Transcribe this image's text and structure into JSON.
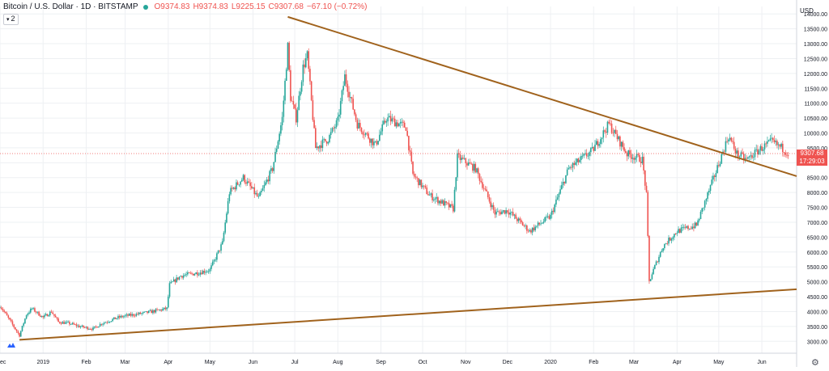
{
  "header": {
    "symbol": "Bitcoin / U.S. Dollar · 1D · BITSTAMP",
    "open": "O9374.83",
    "high": "H9374.83",
    "low": "L9225.15",
    "close": "C9307.68",
    "change": "−67.10 (−0.72%)",
    "indicator_count": "2",
    "currency": "USD",
    "price_label": "9307.68",
    "countdown_label": "17:29:03"
  },
  "colors": {
    "up": "#26a69a",
    "down": "#ef5350",
    "trendline": "#a0621c",
    "price_line": "#ef5350",
    "grid": "#eef0f3"
  },
  "icons": [
    "tradingview-logo-icon",
    "settings-gear-icon"
  ],
  "chart_data": {
    "type": "candlestick",
    "title": "Bitcoin / U.S. Dollar · 1D · BITSTAMP",
    "y_axis": {
      "unit": "USD",
      "ylim": [
        2600,
        14250
      ],
      "ticks": [
        3000,
        3500,
        4000,
        4500,
        5000,
        5500,
        6000,
        6500,
        7000,
        7500,
        8000,
        8500,
        9000,
        9500,
        10000,
        10500,
        11000,
        11500,
        12000,
        12500,
        13000,
        13500,
        14000
      ],
      "tick_labels": [
        "3000.00",
        "3500.00",
        "4000.00",
        "4500.00",
        "5000.00",
        "5500.00",
        "6000.00",
        "6500.00",
        "7000.00",
        "7500.00",
        "8000.00",
        "8500.00",
        "9000.00",
        "9500.00",
        "10000.00",
        "10500.00",
        "11000.00",
        "11500.00",
        "12000.00",
        "12500.00",
        "13000.00",
        "13500.00",
        "14000.00"
      ]
    },
    "x_axis": {
      "range": [
        "2018-12-01",
        "2020-06-26"
      ],
      "ticks": [
        {
          "date": "2018-12-01",
          "label": "ec"
        },
        {
          "date": "2019-01-01",
          "label": "2019"
        },
        {
          "date": "2019-02-01",
          "label": "Feb"
        },
        {
          "date": "2019-03-01",
          "label": "Mar"
        },
        {
          "date": "2019-04-01",
          "label": "Apr"
        },
        {
          "date": "2019-05-01",
          "label": "May"
        },
        {
          "date": "2019-06-01",
          "label": "Jun"
        },
        {
          "date": "2019-07-01",
          "label": "Jul"
        },
        {
          "date": "2019-08-01",
          "label": "Aug"
        },
        {
          "date": "2019-09-01",
          "label": "Sep"
        },
        {
          "date": "2019-10-01",
          "label": "Oct"
        },
        {
          "date": "2019-11-01",
          "label": "Nov"
        },
        {
          "date": "2019-12-01",
          "label": "Dec"
        },
        {
          "date": "2020-01-01",
          "label": "2020"
        },
        {
          "date": "2020-02-01",
          "label": "Feb"
        },
        {
          "date": "2020-03-01",
          "label": "Mar"
        },
        {
          "date": "2020-04-01",
          "label": "Apr"
        },
        {
          "date": "2020-05-01",
          "label": "May"
        },
        {
          "date": "2020-06-01",
          "label": "Jun"
        }
      ]
    },
    "price_path": [
      [
        "2018-12-01",
        4200
      ],
      [
        "2018-12-08",
        3700
      ],
      [
        "2018-12-15",
        3200
      ],
      [
        "2018-12-20",
        3900
      ],
      [
        "2018-12-24",
        4100
      ],
      [
        "2019-01-01",
        3800
      ],
      [
        "2019-01-07",
        4000
      ],
      [
        "2019-01-12",
        3650
      ],
      [
        "2019-01-20",
        3600
      ],
      [
        "2019-01-27",
        3500
      ],
      [
        "2019-02-06",
        3420
      ],
      [
        "2019-02-12",
        3600
      ],
      [
        "2019-02-24",
        3800
      ],
      [
        "2019-03-01",
        3850
      ],
      [
        "2019-03-15",
        3950
      ],
      [
        "2019-03-31",
        4100
      ],
      [
        "2019-04-02",
        4900
      ],
      [
        "2019-04-10",
        5200
      ],
      [
        "2019-04-22",
        5300
      ],
      [
        "2019-05-01",
        5400
      ],
      [
        "2019-05-10",
        6300
      ],
      [
        "2019-05-15",
        8000
      ],
      [
        "2019-05-25",
        8500
      ],
      [
        "2019-06-05",
        7800
      ],
      [
        "2019-06-15",
        8800
      ],
      [
        "2019-06-22",
        10500
      ],
      [
        "2019-06-26",
        12900
      ],
      [
        "2019-06-28",
        11200
      ],
      [
        "2019-07-02",
        10500
      ],
      [
        "2019-07-07",
        12200
      ],
      [
        "2019-07-10",
        12600
      ],
      [
        "2019-07-16",
        9500
      ],
      [
        "2019-07-25",
        9800
      ],
      [
        "2019-08-01",
        10400
      ],
      [
        "2019-08-06",
        11900
      ],
      [
        "2019-08-15",
        10300
      ],
      [
        "2019-08-28",
        9600
      ],
      [
        "2019-09-05",
        10500
      ],
      [
        "2019-09-19",
        10200
      ],
      [
        "2019-09-24",
        8600
      ],
      [
        "2019-10-06",
        7900
      ],
      [
        "2019-10-23",
        7450
      ],
      [
        "2019-10-26",
        9200
      ],
      [
        "2019-11-08",
        8800
      ],
      [
        "2019-11-22",
        7300
      ],
      [
        "2019-12-01",
        7400
      ],
      [
        "2019-12-17",
        6700
      ],
      [
        "2020-01-01",
        7200
      ],
      [
        "2020-01-14",
        8800
      ],
      [
        "2020-01-31",
        9400
      ],
      [
        "2020-02-12",
        10300
      ],
      [
        "2020-02-25",
        9300
      ],
      [
        "2020-03-07",
        9100
      ],
      [
        "2020-03-10",
        7900
      ],
      [
        "2020-03-12",
        5000
      ],
      [
        "2020-03-15",
        5400
      ],
      [
        "2020-03-22",
        6200
      ],
      [
        "2020-04-01",
        6700
      ],
      [
        "2020-04-15",
        6900
      ],
      [
        "2020-04-29",
        8700
      ],
      [
        "2020-05-08",
        9900
      ],
      [
        "2020-05-14",
        9300
      ],
      [
        "2020-05-21",
        9100
      ],
      [
        "2020-06-01",
        9500
      ],
      [
        "2020-06-08",
        9700
      ],
      [
        "2020-06-17",
        9450
      ],
      [
        "2020-06-20",
        9308
      ]
    ],
    "trendlines": [
      {
        "from": [
          "2019-06-26",
          13900
        ],
        "to": [
          "2020-06-26",
          8550
        ]
      },
      {
        "from": [
          "2018-12-15",
          3050
        ],
        "to": [
          "2020-06-26",
          4750
        ]
      }
    ],
    "current_price": 9307.68
  }
}
